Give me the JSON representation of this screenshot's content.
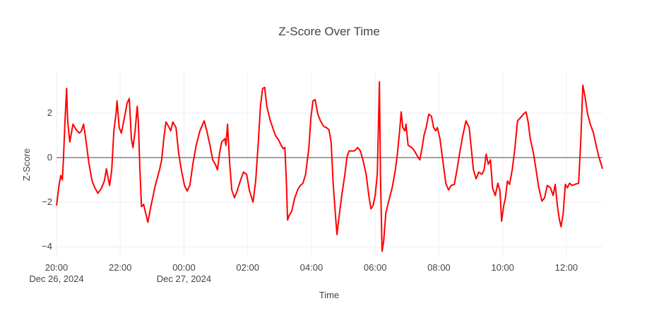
{
  "chart_data": {
    "type": "line",
    "title": "Z-Score Over Time",
    "x_label": "Time",
    "y_label": "Z-Score",
    "xlim": [
      "2024-12-26 20:00",
      "2024-12-27 13:08"
    ],
    "ylim": [
      -4.5,
      3.9
    ],
    "xticks": [
      {
        "value": "2024-12-26 20:00",
        "label": "20:00",
        "date": "Dec 26, 2024"
      },
      {
        "value": "2024-12-26 22:00",
        "label": "22:00"
      },
      {
        "value": "2024-12-27 00:00",
        "label": "00:00",
        "date": "Dec 27, 2024"
      },
      {
        "value": "2024-12-27 02:00",
        "label": "02:00"
      },
      {
        "value": "2024-12-27 04:00",
        "label": "04:00"
      },
      {
        "value": "2024-12-27 06:00",
        "label": "06:00"
      },
      {
        "value": "2024-12-27 08:00",
        "label": "08:00"
      },
      {
        "value": "2024-12-27 10:00",
        "label": "10:00"
      },
      {
        "value": "2024-12-27 12:00",
        "label": "12:00"
      }
    ],
    "yticks": [
      {
        "value": -4,
        "label": "−4"
      },
      {
        "value": -2,
        "label": "−2"
      },
      0,
      2
    ],
    "grid": true,
    "zeroline": true,
    "color": "#ff0000",
    "x": [
      "2024-12-26 20:00",
      "2024-12-26 20:05",
      "2024-12-26 20:08",
      "2024-12-26 20:11",
      "2024-12-26 20:13",
      "2024-12-26 20:16",
      "2024-12-26 20:19",
      "2024-12-26 20:21",
      "2024-12-26 20:25",
      "2024-12-26 20:31",
      "2024-12-26 20:37",
      "2024-12-26 20:43",
      "2024-12-26 20:47",
      "2024-12-26 20:51",
      "2024-12-26 20:55",
      "2024-12-26 21:01",
      "2024-12-26 21:07",
      "2024-12-26 21:12",
      "2024-12-26 21:18",
      "2024-12-26 21:25",
      "2024-12-26 21:30",
      "2024-12-26 21:34",
      "2024-12-26 21:37",
      "2024-12-26 21:40",
      "2024-12-26 21:44",
      "2024-12-26 21:48",
      "2024-12-26 21:52",
      "2024-12-26 21:54",
      "2024-12-26 21:58",
      "2024-12-26 22:02",
      "2024-12-26 22:08",
      "2024-12-26 22:13",
      "2024-12-26 22:17",
      "2024-12-26 22:21",
      "2024-12-26 22:24",
      "2024-12-26 22:28",
      "2024-12-26 22:32",
      "2024-12-26 22:34",
      "2024-12-26 22:37",
      "2024-12-26 22:40",
      "2024-12-26 22:44",
      "2024-12-26 22:46",
      "2024-12-26 22:52",
      "2024-12-26 22:58",
      "2024-12-26 23:06",
      "2024-12-26 23:14",
      "2024-12-26 23:18",
      "2024-12-26 23:22",
      "2024-12-26 23:26",
      "2024-12-26 23:31",
      "2024-12-26 23:35",
      "2024-12-26 23:39",
      "2024-12-26 23:45",
      "2024-12-26 23:50",
      "2024-12-26 23:55",
      "2024-12-27 00:01",
      "2024-12-27 00:06",
      "2024-12-27 00:11",
      "2024-12-27 00:17",
      "2024-12-27 00:23",
      "2024-12-27 00:30",
      "2024-12-27 00:38",
      "2024-12-27 00:43",
      "2024-12-27 00:49",
      "2024-12-27 00:54",
      "2024-12-27 00:59",
      "2024-12-27 01:03",
      "2024-12-27 01:07",
      "2024-12-27 01:11",
      "2024-12-27 01:17",
      "2024-12-27 01:19",
      "2024-12-27 01:22",
      "2024-12-27 01:26",
      "2024-12-27 01:30",
      "2024-12-27 01:35",
      "2024-12-27 01:40",
      "2024-12-27 01:46",
      "2024-12-27 01:52",
      "2024-12-27 01:58",
      "2024-12-27 02:03",
      "2024-12-27 02:10",
      "2024-12-27 02:15",
      "2024-12-27 02:20",
      "2024-12-27 02:24",
      "2024-12-27 02:28",
      "2024-12-27 02:32",
      "2024-12-27 02:36",
      "2024-12-27 02:42",
      "2024-12-27 02:47",
      "2024-12-27 02:52",
      "2024-12-27 02:58",
      "2024-12-27 03:03",
      "2024-12-27 03:07",
      "2024-12-27 03:10",
      "2024-12-27 03:13",
      "2024-12-27 03:15",
      "2024-12-27 03:18",
      "2024-12-27 03:23",
      "2024-12-27 03:28",
      "2024-12-27 03:34",
      "2024-12-27 03:39",
      "2024-12-27 03:44",
      "2024-12-27 03:49",
      "2024-12-27 03:55",
      "2024-12-27 03:59",
      "2024-12-27 04:03",
      "2024-12-27 04:07",
      "2024-12-27 04:12",
      "2024-12-27 04:17",
      "2024-12-27 04:23",
      "2024-12-27 04:28",
      "2024-12-27 04:33",
      "2024-12-27 04:37",
      "2024-12-27 04:41",
      "2024-12-27 04:45",
      "2024-12-27 04:48",
      "2024-12-27 04:52",
      "2024-12-27 04:57",
      "2024-12-27 05:03",
      "2024-12-27 05:07",
      "2024-12-27 05:11",
      "2024-12-27 05:16",
      "2024-12-27 05:21",
      "2024-12-27 05:27",
      "2024-12-27 05:32",
      "2024-12-27 05:37",
      "2024-12-27 05:43",
      "2024-12-27 05:48",
      "2024-12-27 05:52",
      "2024-12-27 05:56",
      "2024-12-27 06:00",
      "2024-12-27 06:04",
      "2024-12-27 06:08",
      "2024-12-27 06:10",
      "2024-12-27 06:13",
      "2024-12-27 06:16",
      "2024-12-27 06:20",
      "2024-12-27 06:25",
      "2024-12-27 06:32",
      "2024-12-27 06:38",
      "2024-12-27 06:42",
      "2024-12-27 06:46",
      "2024-12-27 06:49",
      "2024-12-27 06:52",
      "2024-12-27 06:56",
      "2024-12-27 06:58",
      "2024-12-27 07:02",
      "2024-12-27 07:09",
      "2024-12-27 07:14",
      "2024-12-27 07:20",
      "2024-12-27 07:24",
      "2024-12-27 07:28",
      "2024-12-27 07:32",
      "2024-12-27 07:36",
      "2024-12-27 07:41",
      "2024-12-27 07:46",
      "2024-12-27 07:50",
      "2024-12-27 07:54",
      "2024-12-27 07:57",
      "2024-12-27 08:02",
      "2024-12-27 08:08",
      "2024-12-27 08:13",
      "2024-12-27 08:18",
      "2024-12-27 08:23",
      "2024-12-27 08:29",
      "2024-12-27 08:34",
      "2024-12-27 08:39",
      "2024-12-27 08:45",
      "2024-12-27 08:51",
      "2024-12-27 08:57",
      "2024-12-27 09:01",
      "2024-12-27 09:05",
      "2024-12-27 09:10",
      "2024-12-27 09:15",
      "2024-12-27 09:21",
      "2024-12-27 09:25",
      "2024-12-27 09:29",
      "2024-12-27 09:33",
      "2024-12-27 09:37",
      "2024-12-27 09:41",
      "2024-12-27 09:46",
      "2024-12-27 09:51",
      "2024-12-27 09:55",
      "2024-12-27 09:58",
      "2024-12-27 10:02",
      "2024-12-27 10:05",
      "2024-12-27 10:09",
      "2024-12-27 10:13",
      "2024-12-27 10:18",
      "2024-12-27 10:23",
      "2024-12-27 10:28",
      "2024-12-27 10:34",
      "2024-12-27 10:39",
      "2024-12-27 10:44",
      "2024-12-27 10:48",
      "2024-12-27 10:52",
      "2024-12-27 10:58",
      "2024-12-27 11:03",
      "2024-12-27 11:08",
      "2024-12-27 11:14",
      "2024-12-27 11:19",
      "2024-12-27 11:24",
      "2024-12-27 11:30",
      "2024-12-27 11:35",
      "2024-12-27 11:39",
      "2024-12-27 11:43",
      "2024-12-27 11:47",
      "2024-12-27 11:50",
      "2024-12-27 11:54",
      "2024-12-27 11:58",
      "2024-12-27 12:02",
      "2024-12-27 12:06",
      "2024-12-27 12:11",
      "2024-12-27 12:16",
      "2024-12-27 12:23",
      "2024-12-27 12:27",
      "2024-12-27 12:31",
      "2024-12-27 12:35",
      "2024-12-27 12:40",
      "2024-12-27 12:45",
      "2024-12-27 12:51",
      "2024-12-27 12:56",
      "2024-12-27 13:01",
      "2024-12-27 13:08"
    ],
    "values": [
      -2.15,
      -1.2,
      -0.8,
      -1.0,
      -0.1,
      1.65,
      3.1,
      1.65,
      0.7,
      1.5,
      1.25,
      1.1,
      1.2,
      1.5,
      0.85,
      -0.25,
      -1.05,
      -1.35,
      -1.6,
      -1.35,
      -1.05,
      -0.5,
      -0.9,
      -1.25,
      -0.55,
      1.2,
      1.95,
      2.55,
      1.35,
      1.1,
      1.8,
      2.45,
      2.65,
      0.85,
      0.45,
      1.2,
      2.3,
      1.65,
      -0.55,
      -2.2,
      -2.1,
      -2.3,
      -2.9,
      -2.15,
      -1.25,
      -0.55,
      -0.1,
      0.85,
      1.6,
      1.4,
      1.2,
      1.6,
      1.35,
      0.2,
      -0.55,
      -1.25,
      -1.5,
      -1.25,
      -0.25,
      0.55,
      1.2,
      1.65,
      1.2,
      0.55,
      -0.1,
      -0.3,
      -0.55,
      0.2,
      0.7,
      0.85,
      0.55,
      1.5,
      -0.25,
      -1.45,
      -1.8,
      -1.5,
      -1.05,
      -0.65,
      -0.75,
      -1.45,
      -2.0,
      -1.05,
      0.7,
      2.3,
      3.1,
      3.15,
      2.3,
      1.7,
      1.35,
      1.0,
      0.8,
      0.55,
      0.4,
      0.45,
      -1.2,
      -2.8,
      -2.6,
      -2.4,
      -1.85,
      -1.45,
      -1.25,
      -1.15,
      -0.75,
      0.4,
      1.8,
      2.55,
      2.6,
      1.95,
      1.65,
      1.4,
      1.35,
      1.25,
      0.7,
      -1.2,
      -2.5,
      -3.45,
      -2.65,
      -1.7,
      -0.75,
      0.05,
      0.3,
      0.3,
      0.3,
      0.45,
      0.3,
      -0.1,
      -0.75,
      -1.7,
      -2.3,
      -2.15,
      -1.7,
      -0.75,
      3.4,
      -0.9,
      -4.2,
      -3.75,
      -2.5,
      -2.0,
      -1.35,
      -0.55,
      0.2,
      1.2,
      2.05,
      1.35,
      1.2,
      1.5,
      0.55,
      0.45,
      0.3,
      0.05,
      -0.1,
      0.4,
      1.0,
      1.35,
      1.95,
      1.85,
      1.35,
      1.2,
      1.35,
      0.85,
      -0.25,
      -1.15,
      -1.45,
      -1.25,
      -1.2,
      -0.55,
      0.2,
      1.0,
      1.65,
      1.35,
      0.4,
      -0.55,
      -0.95,
      -0.65,
      -0.75,
      -0.55,
      0.15,
      -0.3,
      -0.1,
      -1.35,
      -1.7,
      -1.15,
      -1.5,
      -2.85,
      -2.15,
      -1.85,
      -1.05,
      -1.2,
      -0.55,
      0.4,
      1.65,
      1.8,
      1.95,
      2.05,
      1.6,
      0.85,
      0.2,
      -0.55,
      -1.35,
      -1.95,
      -1.8,
      -1.25,
      -1.35,
      -1.7,
      -1.2,
      -2.15,
      -2.8,
      -3.1,
      -2.5,
      -1.2,
      -1.35,
      -1.15,
      -1.25,
      -1.2,
      -1.15,
      0.7,
      3.25,
      2.75,
      1.95,
      1.5,
      1.1,
      0.55,
      0.05,
      -0.5
    ]
  }
}
